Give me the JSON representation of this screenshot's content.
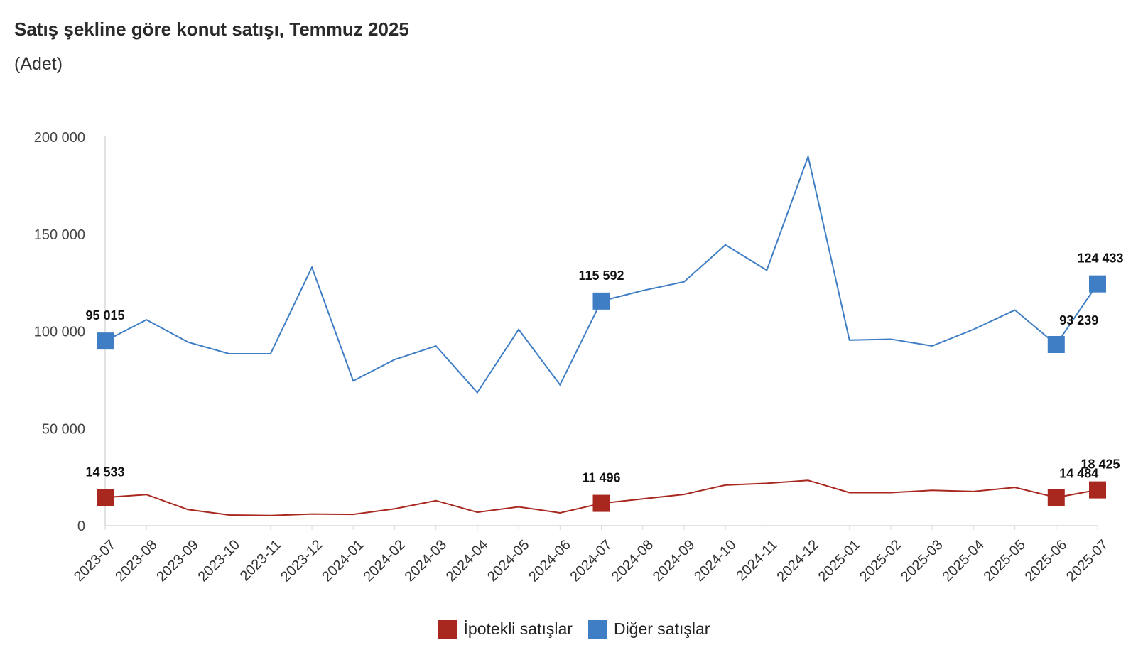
{
  "chart_data": {
    "type": "line",
    "title": "Satış şekline göre konut satışı, Temmuz 2025",
    "subtitle": "(Adet)",
    "ylim": [
      0,
      200000
    ],
    "yticks": [
      0,
      50000,
      100000,
      150000,
      200000
    ],
    "ytick_labels": [
      "0",
      "50 000",
      "100 000",
      "150 000",
      "200 000"
    ],
    "grid": false,
    "legend_position": "bottom",
    "x": [
      "2023-07",
      "2023-08",
      "2023-09",
      "2023-10",
      "2023-11",
      "2023-12",
      "2024-01",
      "2024-02",
      "2024-03",
      "2024-04",
      "2024-05",
      "2024-06",
      "2024-07",
      "2024-08",
      "2024-09",
      "2024-10",
      "2024-11",
      "2024-12",
      "2025-01",
      "2025-02",
      "2025-03",
      "2025-04",
      "2025-05",
      "2025-06",
      "2025-07"
    ],
    "series": [
      {
        "name": "İpotekli satışlar",
        "color": "#a8281f",
        "values": [
          14533,
          16000,
          8300,
          5500,
          5200,
          6000,
          5800,
          8700,
          12900,
          6900,
          9700,
          6600,
          11496,
          13800,
          16100,
          20900,
          21800,
          23300,
          17000,
          17000,
          18200,
          17600,
          19700,
          14484,
          18425
        ],
        "labels": [
          {
            "index": 0,
            "text": "14 533"
          },
          {
            "index": 12,
            "text": "11 496"
          },
          {
            "index": 23,
            "text": "14 484"
          },
          {
            "index": 24,
            "text": "18 425"
          }
        ]
      },
      {
        "name": "Diğer satışlar",
        "color": "#3f7ec4",
        "values": [
          95015,
          106000,
          94500,
          88500,
          88500,
          133000,
          74500,
          85500,
          92500,
          68500,
          101000,
          72500,
          115592,
          121000,
          125500,
          144500,
          131500,
          190000,
          95500,
          96000,
          92500,
          101000,
          111000,
          93239,
          124433
        ],
        "labels": [
          {
            "index": 0,
            "text": "95 015"
          },
          {
            "index": 12,
            "text": "115 592"
          },
          {
            "index": 23,
            "text": "93 239"
          },
          {
            "index": 24,
            "text": "124 433"
          }
        ]
      }
    ]
  }
}
